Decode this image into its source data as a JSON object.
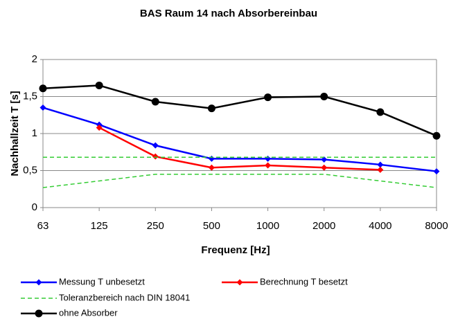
{
  "chart_data": {
    "type": "line",
    "title": "BAS Raum 14 nach Absorbereinbau",
    "x_label": "Frequenz [Hz]",
    "y_label": "Nachhallzeit T [s]",
    "categories": [
      "63",
      "125",
      "250",
      "500",
      "1000",
      "2000",
      "4000",
      "8000"
    ],
    "ylim": [
      0,
      2
    ],
    "yticks": [
      0,
      {
        "value": 0.5,
        "label": "0,5"
      },
      1,
      {
        "value": 1.5,
        "label": "1,5"
      },
      2
    ],
    "grid": true,
    "legend": "bottom",
    "series": [
      {
        "name": "Messung T unbesetzt",
        "color": "#0000ff",
        "marker": "diamond",
        "values": [
          1.35,
          1.12,
          0.84,
          0.66,
          0.66,
          0.65,
          0.58,
          0.49
        ]
      },
      {
        "name": "Berechnung T besetzt",
        "color": "#ff0000",
        "marker": "diamond",
        "values": [
          null,
          1.08,
          0.69,
          0.54,
          0.57,
          0.54,
          0.51,
          null
        ]
      },
      {
        "name": "Toleranzbereich nach DIN 18041",
        "color": "#33cc33",
        "dashed": true,
        "values": [
          0.68,
          0.68,
          0.68,
          0.68,
          0.68,
          0.68,
          0.68,
          0.68
        ],
        "lower_values": [
          0.27,
          0.36,
          0.45,
          0.45,
          0.45,
          0.45,
          0.36,
          0.27
        ]
      },
      {
        "name": "ohne Absorber",
        "color": "#000000",
        "marker": "circle",
        "values": [
          1.61,
          1.65,
          1.43,
          1.34,
          1.49,
          1.5,
          1.29,
          0.97
        ]
      }
    ]
  }
}
